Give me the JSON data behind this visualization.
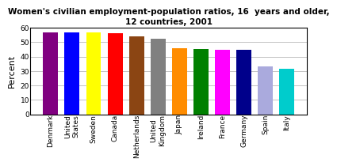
{
  "categories": [
    "Denmark",
    "United\nStates",
    "Sweden",
    "Canada",
    "Netherlands",
    "United\nKingdom",
    "Japan",
    "Ireland",
    "France",
    "Germany",
    "Spain",
    "Italy"
  ],
  "values": [
    57,
    57,
    57,
    56,
    54,
    52.5,
    46,
    45.5,
    45,
    45,
    33,
    31.5
  ],
  "bar_colors": [
    "#800080",
    "#0000FF",
    "#FFFF00",
    "#FF0000",
    "#8B4513",
    "#808080",
    "#FF8C00",
    "#008000",
    "#FF00FF",
    "#00008B",
    "#AAAADD",
    "#00CCCC"
  ],
  "title": "Women's civilian employment-population ratios, 16  years and older,\n12 countries, 2001",
  "ylabel": "Percent",
  "ylim": [
    0,
    60
  ],
  "yticks": [
    0,
    10,
    20,
    30,
    40,
    50,
    60
  ],
  "title_fontsize": 7.5,
  "ylabel_fontsize": 8,
  "tick_fontsize": 6.5,
  "background_color": "#FFFFFF",
  "border_color": "#000000",
  "bar_width": 0.7,
  "grid_color": "#AAAAAA"
}
